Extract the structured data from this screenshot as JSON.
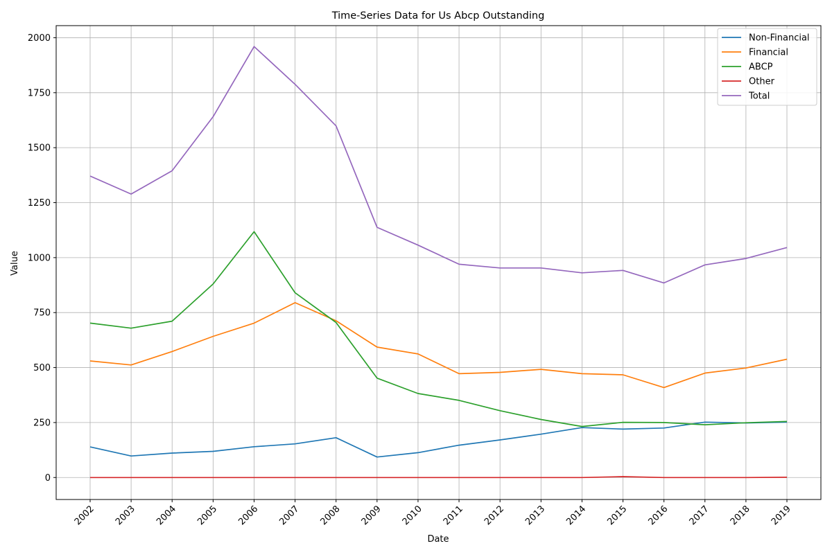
{
  "colors": {
    "grid": "#b0b0b0",
    "axis": "#000000",
    "background": "#ffffff"
  },
  "chart_data": {
    "type": "line",
    "title": "Time-Series Data for Us Abcp Outstanding",
    "xlabel": "Date",
    "ylabel": "Value",
    "ylim": [
      -100,
      2055
    ],
    "grid": true,
    "legend_position": "top-right",
    "x": [
      "2002",
      "2003",
      "2004",
      "2005",
      "2006",
      "2007",
      "2008",
      "2009",
      "2010",
      "2011",
      "2012",
      "2013",
      "2014",
      "2015",
      "2016",
      "2017",
      "2018",
      "2019"
    ],
    "yticks": [
      0,
      250,
      500,
      750,
      1000,
      1250,
      1500,
      1750,
      2000
    ],
    "series": [
      {
        "name": "Non-Financial",
        "color": "#1f77b4",
        "values": [
          139,
          98,
          111,
          119,
          140,
          153,
          181,
          93,
          113,
          147,
          171,
          197,
          227,
          220,
          225,
          252,
          248,
          252
        ]
      },
      {
        "name": "Financial",
        "color": "#ff7f0e",
        "values": [
          530,
          512,
          573,
          642,
          702,
          795,
          713,
          593,
          562,
          472,
          478,
          492,
          472,
          467,
          409,
          475,
          498,
          538
        ]
      },
      {
        "name": "ABCP",
        "color": "#2ca02c",
        "values": [
          702,
          679,
          711,
          880,
          1118,
          840,
          705,
          452,
          382,
          351,
          304,
          264,
          232,
          251,
          250,
          240,
          249,
          255
        ]
      },
      {
        "name": "Other",
        "color": "#d62728",
        "values": [
          0,
          0,
          0,
          0,
          0,
          0,
          0,
          0,
          0,
          0,
          0,
          0,
          0,
          4,
          0,
          0,
          0,
          1
        ]
      },
      {
        "name": "Total",
        "color": "#9467bd",
        "values": [
          1371,
          1289,
          1395,
          1641,
          1960,
          1788,
          1599,
          1138,
          1057,
          970,
          953,
          953,
          931,
          942,
          885,
          967,
          996,
          1046
        ]
      }
    ]
  }
}
